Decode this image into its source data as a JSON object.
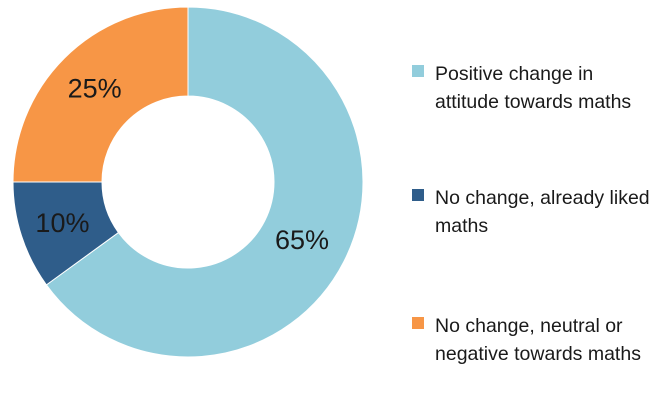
{
  "chart_data": {
    "type": "pie",
    "donut": true,
    "title": "",
    "categories": [
      "Positive change in attitude towards maths",
      "No change, already liked maths",
      "No change, neutral or negative towards maths"
    ],
    "values": [
      65,
      10,
      25
    ],
    "data_labels": [
      "65%",
      "10%",
      "25%"
    ],
    "colors": [
      "#92cddc",
      "#2f5d8a",
      "#f79646"
    ],
    "legend_position": "right"
  },
  "legend": {
    "items": [
      {
        "label": "Positive change in attitude towards maths",
        "color": "#92cddc"
      },
      {
        "label": "No change, already liked maths",
        "color": "#2f5d8a"
      },
      {
        "label": "No change, neutral or negative towards maths",
        "color": "#f79646"
      }
    ]
  }
}
